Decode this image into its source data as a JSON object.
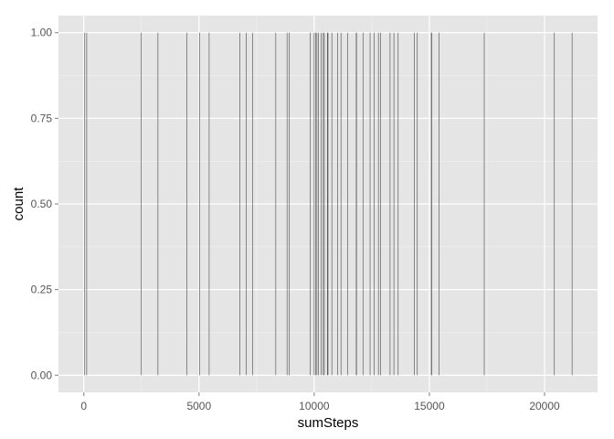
{
  "chart_data": {
    "type": "bar",
    "subtype": "histogram",
    "title": "",
    "xlabel": "sumSteps",
    "ylabel": "count",
    "xlim": [
      -1100,
      22300
    ],
    "ylim": [
      -0.05,
      1.05
    ],
    "x_ticks": [
      0,
      5000,
      10000,
      15000,
      20000
    ],
    "x_tick_labels": [
      "0",
      "5000",
      "10000",
      "15000",
      "20000"
    ],
    "y_ticks": [
      0.0,
      0.25,
      0.5,
      0.75,
      1.0
    ],
    "y_tick_labels": [
      "0.00",
      "0.25",
      "0.50",
      "0.75",
      "1.00"
    ],
    "grid": true,
    "bin_width": 21,
    "x": [
      41,
      126,
      2492,
      3219,
      4472,
      5018,
      5441,
      6778,
      7047,
      7336,
      8334,
      8821,
      8918,
      9819,
      10000,
      10056,
      10119,
      10183,
      10304,
      10395,
      10439,
      10571,
      10600,
      10765,
      11015,
      11162,
      11458,
      11834,
      11829,
      12116,
      12426,
      12608,
      12787,
      12883,
      13294,
      13460,
      13646,
      14339,
      14478,
      15084,
      15098,
      15414,
      17382,
      20427,
      21194
    ],
    "values": [
      1,
      1,
      1,
      1,
      1,
      1,
      1,
      1,
      1,
      1,
      1,
      1,
      1,
      1,
      1,
      1,
      1,
      1,
      1,
      1,
      1,
      1,
      1,
      1,
      1,
      1,
      1,
      1,
      1,
      1,
      1,
      1,
      1,
      1,
      1,
      1,
      1,
      1,
      1,
      1,
      1,
      1,
      1,
      1,
      1
    ],
    "colors": {
      "panel_background": "#E5E5E5",
      "major_grid": "#FFFFFF",
      "minor_grid": "#F2F2F2",
      "bar_fill": "#333333",
      "tick_mark": "#7F7F7F"
    }
  }
}
